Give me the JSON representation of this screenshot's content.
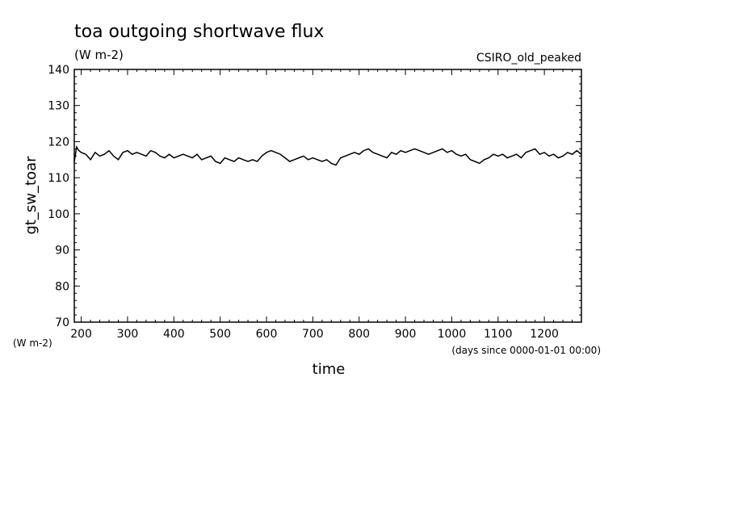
{
  "chart_data": {
    "type": "line",
    "title": "toa outgoing shortwave flux",
    "subtitle": "(W m-2)",
    "model_label": "CSIRO_old_peaked",
    "ylabel": "gt_sw_toar",
    "yunits": "(W m-2)",
    "xlabel": "time",
    "xunits": "(days since 0000-01-01 00:00)",
    "xlim": [
      185,
      1280
    ],
    "ylim": [
      70,
      140
    ],
    "xticks": [
      200,
      300,
      400,
      500,
      600,
      700,
      800,
      900,
      1000,
      1100,
      1200
    ],
    "yticks": [
      70,
      80,
      90,
      100,
      110,
      120,
      130,
      140
    ],
    "grid": false,
    "series": [
      {
        "x": [
          185,
          190,
          195,
          200,
          210,
          220,
          230,
          240,
          250,
          260,
          270,
          280,
          290,
          300,
          310,
          320,
          330,
          340,
          350,
          360,
          370,
          380,
          390,
          400,
          410,
          420,
          430,
          440,
          450,
          460,
          470,
          480,
          490,
          500,
          510,
          520,
          530,
          540,
          550,
          560,
          570,
          580,
          590,
          600,
          610,
          620,
          630,
          640,
          650,
          660,
          670,
          680,
          690,
          700,
          710,
          720,
          730,
          740,
          750,
          760,
          770,
          780,
          790,
          800,
          810,
          820,
          830,
          840,
          850,
          860,
          870,
          880,
          890,
          900,
          910,
          920,
          930,
          940,
          950,
          960,
          970,
          980,
          990,
          1000,
          1010,
          1020,
          1030,
          1040,
          1050,
          1060,
          1070,
          1080,
          1090,
          1100,
          1110,
          1120,
          1130,
          1140,
          1150,
          1160,
          1170,
          1180,
          1190,
          1200,
          1210,
          1220,
          1230,
          1240,
          1250,
          1260,
          1270,
          1280
        ],
        "values": [
          114.5,
          118.5,
          117.5,
          117.0,
          116.5,
          115.0,
          117.0,
          116.0,
          116.5,
          117.5,
          116.0,
          115.0,
          117.0,
          117.5,
          116.5,
          117.0,
          116.5,
          116.0,
          117.5,
          117.0,
          116.0,
          115.5,
          116.5,
          115.5,
          116.0,
          116.5,
          116.0,
          115.5,
          116.5,
          115.0,
          115.5,
          116.0,
          114.5,
          114.0,
          115.5,
          115.0,
          114.5,
          115.5,
          115.0,
          114.5,
          115.0,
          114.5,
          116.0,
          117.0,
          117.5,
          117.0,
          116.5,
          115.5,
          114.5,
          115.0,
          115.5,
          116.0,
          115.0,
          115.5,
          115.0,
          114.5,
          115.0,
          114.0,
          113.5,
          115.5,
          116.0,
          116.5,
          117.0,
          116.5,
          117.5,
          118.0,
          117.0,
          116.5,
          116.0,
          115.5,
          117.0,
          116.5,
          117.5,
          117.0,
          117.5,
          118.0,
          117.5,
          117.0,
          116.5,
          117.0,
          117.5,
          118.0,
          117.0,
          117.5,
          116.5,
          116.0,
          116.5,
          115.0,
          114.5,
          114.0,
          115.0,
          115.5,
          116.5,
          116.0,
          116.5,
          115.5,
          116.0,
          116.5,
          115.5,
          117.0,
          117.5,
          118.0,
          116.5,
          117.0,
          116.0,
          116.5,
          115.5,
          116.0,
          117.0,
          116.5,
          117.5,
          116.5
        ]
      }
    ]
  }
}
